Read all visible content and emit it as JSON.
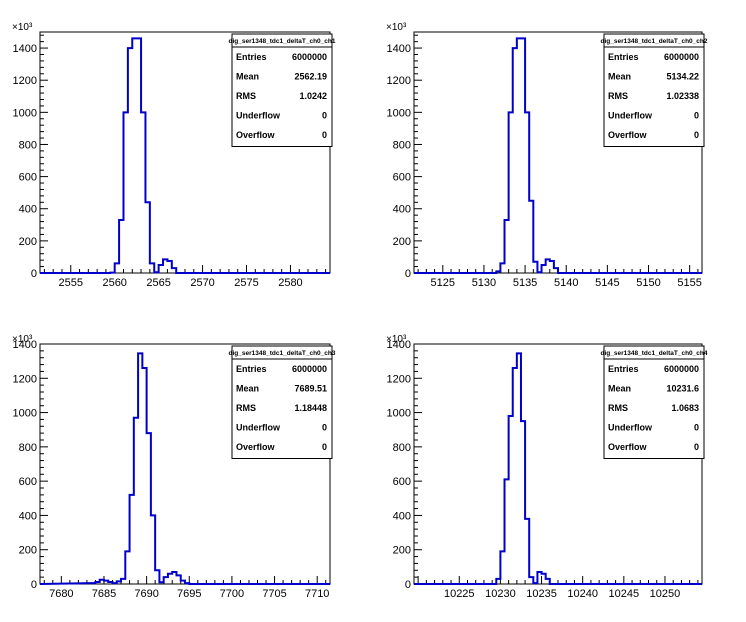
{
  "chart_data": [
    {
      "type": "histogram",
      "title": "dig_ser1348_tdc1_deltaT_ch0_ch1",
      "y_exponent_label": "×10³",
      "xlim": [
        2551.5,
        2584.5
      ],
      "ylim": [
        0,
        1500
      ],
      "x_ticks": [
        "2555",
        "2560",
        "2565",
        "2570",
        "2575",
        "2580"
      ],
      "x_tick_values": [
        2555,
        2560,
        2565,
        2570,
        2575,
        2580
      ],
      "y_ticks": [
        "0",
        "200",
        "400",
        "600",
        "800",
        "1000",
        "1200",
        "1400"
      ],
      "y_tick_values": [
        0,
        200,
        400,
        600,
        800,
        1000,
        1200,
        1400
      ],
      "bin_width": 0.5,
      "bins_x": [
        2559.0,
        2559.5,
        2560.0,
        2560.5,
        2561.0,
        2561.5,
        2562.0,
        2562.5,
        2563.0,
        2563.5,
        2564.0,
        2564.5,
        2565.0,
        2565.5,
        2566.0,
        2566.5,
        2567.0
      ],
      "bins_y": [
        0,
        2,
        60,
        330,
        1000,
        1400,
        1460,
        1460,
        1000,
        440,
        60,
        5,
        50,
        85,
        75,
        30,
        0
      ],
      "stats": [
        {
          "label": "Entries",
          "value": "6000000"
        },
        {
          "label": "Mean",
          "value": "2562.19"
        },
        {
          "label": "RMS",
          "value": "1.0242"
        },
        {
          "label": "Underflow",
          "value": "0"
        },
        {
          "label": "Overflow",
          "value": "0"
        }
      ]
    },
    {
      "type": "histogram",
      "title": "dig_ser1348_tdc1_deltaT_ch0_ch2",
      "y_exponent_label": "×10³",
      "xlim": [
        5121.5,
        5156.5
      ],
      "ylim": [
        0,
        1500
      ],
      "x_ticks": [
        "5125",
        "5130",
        "5135",
        "5140",
        "5145",
        "5150",
        "5155"
      ],
      "x_tick_values": [
        5125,
        5130,
        5135,
        5140,
        5145,
        5150,
        5155
      ],
      "y_ticks": [
        "0",
        "200",
        "400",
        "600",
        "800",
        "1000",
        "1200",
        "1400"
      ],
      "y_tick_values": [
        0,
        200,
        400,
        600,
        800,
        1000,
        1200,
        1400
      ],
      "bin_width": 0.5,
      "bins_x": [
        5131.0,
        5131.5,
        5132.0,
        5132.5,
        5133.0,
        5133.5,
        5134.0,
        5134.5,
        5135.0,
        5135.5,
        5136.0,
        5136.5,
        5137.0,
        5137.5,
        5138.0,
        5138.5,
        5139.0
      ],
      "bins_y": [
        0,
        10,
        60,
        330,
        1000,
        1400,
        1460,
        1460,
        1000,
        450,
        70,
        5,
        50,
        85,
        75,
        30,
        0
      ],
      "stats": [
        {
          "label": "Entries",
          "value": "6000000"
        },
        {
          "label": "Mean",
          "value": "5134.22"
        },
        {
          "label": "RMS",
          "value": "1.02338"
        },
        {
          "label": "Underflow",
          "value": "0"
        },
        {
          "label": "Overflow",
          "value": "0"
        }
      ]
    },
    {
      "type": "histogram",
      "title": "dig_ser1348_tdc1_deltaT_ch0_ch3",
      "y_exponent_label": "×10³",
      "xlim": [
        7677.5,
        7711.5
      ],
      "ylim": [
        0,
        1400
      ],
      "x_ticks": [
        "7680",
        "7685",
        "7690",
        "7695",
        "7700",
        "7705",
        "7710"
      ],
      "x_tick_values": [
        7680,
        7685,
        7690,
        7695,
        7700,
        7705,
        7710
      ],
      "y_ticks": [
        "0",
        "200",
        "400",
        "600",
        "800",
        "1000",
        "1200",
        "1400"
      ],
      "y_tick_values": [
        0,
        200,
        400,
        600,
        800,
        1000,
        1200,
        1400
      ],
      "bin_width": 0.5,
      "bins_x": [
        7683.5,
        7684.0,
        7684.5,
        7685.0,
        7685.5,
        7686.0,
        7686.5,
        7687.0,
        7687.5,
        7688.0,
        7688.5,
        7689.0,
        7689.5,
        7690.0,
        7690.5,
        7691.0,
        7691.5,
        7692.0,
        7692.5,
        7693.0,
        7693.5,
        7694.0,
        7694.5,
        7695.0
      ],
      "bins_y": [
        5,
        12,
        25,
        20,
        12,
        5,
        15,
        30,
        190,
        520,
        970,
        1345,
        1260,
        880,
        400,
        80,
        10,
        40,
        60,
        70,
        50,
        20,
        5,
        0
      ],
      "stats": [
        {
          "label": "Entries",
          "value": "6000000"
        },
        {
          "label": "Mean",
          "value": "7689.51"
        },
        {
          "label": "RMS",
          "value": "1.18448"
        },
        {
          "label": "Underflow",
          "value": "0"
        },
        {
          "label": "Overflow",
          "value": "0"
        }
      ]
    },
    {
      "type": "histogram",
      "title": "dig_ser1348_tdc1_deltaT_ch0_ch4",
      "y_exponent_label": "×10³",
      "xlim": [
        10219.5,
        10254.5
      ],
      "ylim": [
        0,
        1400
      ],
      "x_ticks": [
        "10225",
        "10230",
        "10235",
        "10240",
        "10245",
        "10250"
      ],
      "x_tick_values": [
        10225,
        10230,
        10235,
        10240,
        10245,
        10250
      ],
      "y_ticks": [
        "0",
        "200",
        "400",
        "600",
        "800",
        "1000",
        "1200",
        "1400"
      ],
      "y_tick_values": [
        0,
        200,
        400,
        600,
        800,
        1000,
        1200,
        1400
      ],
      "bin_width": 0.5,
      "bins_x": [
        10229.0,
        10229.5,
        10230.0,
        10230.5,
        10231.0,
        10231.5,
        10232.0,
        10232.5,
        10233.0,
        10233.5,
        10234.0,
        10234.5,
        10235.0,
        10235.5,
        10236.0
      ],
      "bins_y": [
        0,
        30,
        190,
        610,
        980,
        1260,
        1345,
        950,
        380,
        40,
        5,
        70,
        60,
        30,
        0
      ],
      "stats": [
        {
          "label": "Entries",
          "value": "6000000"
        },
        {
          "label": "Mean",
          "value": "10231.6"
        },
        {
          "label": "RMS",
          "value": "1.0683"
        },
        {
          "label": "Underflow",
          "value": "0"
        },
        {
          "label": "Overflow",
          "value": "0"
        }
      ]
    }
  ],
  "colors": {
    "histogram_line": "#0000cc",
    "axis": "#000000",
    "background": "#ffffff"
  }
}
